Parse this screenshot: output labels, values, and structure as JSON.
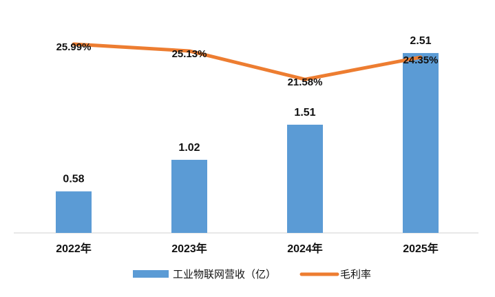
{
  "chart_data": {
    "type": "bar",
    "categories": [
      "2022年",
      "2023年",
      "2024年",
      "2025年"
    ],
    "series": [
      {
        "name": "工业物联网营收（亿）",
        "type": "bar",
        "values": [
          0.58,
          1.02,
          1.51,
          2.51
        ],
        "labels": [
          "0.58",
          "1.02",
          "1.51",
          "2.51"
        ],
        "color": "#5B9BD5"
      },
      {
        "name": "毛利率",
        "type": "line",
        "values": [
          25.99,
          25.13,
          21.58,
          24.35
        ],
        "labels": [
          "25.99%",
          "25.13%",
          "21.58%",
          "24.35%"
        ],
        "color": "#ED7D31"
      }
    ],
    "title": "",
    "xlabel": "",
    "ylabel": "",
    "legend_position": "bottom",
    "grid": false
  }
}
